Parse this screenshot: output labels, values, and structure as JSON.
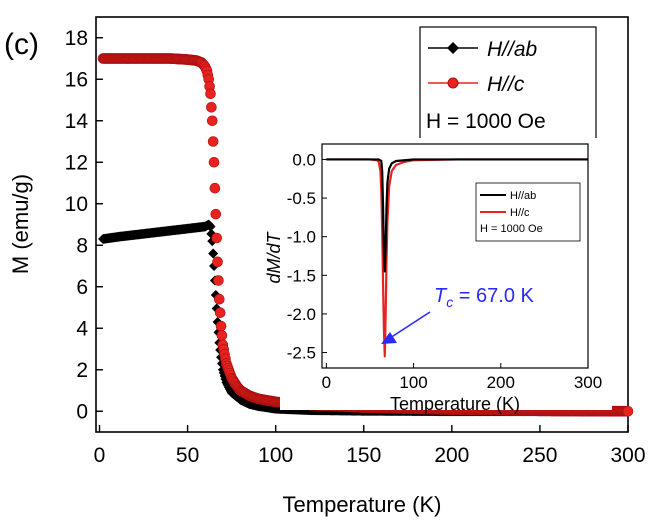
{
  "panel_label": "(c)",
  "chart_data": [
    {
      "type": "scatter",
      "xlabel": "Temperature (K)",
      "ylabel": "M (emu/g)",
      "xlim": [
        -2,
        300
      ],
      "ylim": [
        -1,
        19
      ],
      "xticks": [
        0,
        50,
        100,
        150,
        200,
        250,
        300
      ],
      "xtick_labels": [
        "0",
        "50",
        "100",
        "150",
        "200",
        "250",
        "300"
      ],
      "yticks": [
        0,
        2,
        4,
        6,
        8,
        10,
        12,
        14,
        16,
        18
      ],
      "ytick_labels": [
        "0",
        "2",
        "4",
        "6",
        "8",
        "10",
        "12",
        "14",
        "16",
        "18"
      ],
      "legend_position": "top-right",
      "legend_note": "H = 1000 Oe",
      "series": [
        {
          "name": "H//ab",
          "color": "#000000",
          "marker": "diamond",
          "x": [
            2,
            10,
            20,
            30,
            40,
            50,
            55,
            60,
            62,
            63,
            64,
            65,
            66,
            67,
            68,
            69,
            70,
            72,
            75,
            80,
            85,
            90,
            100,
            120,
            150,
            200,
            250,
            300
          ],
          "y": [
            8.3,
            8.4,
            8.5,
            8.6,
            8.7,
            8.8,
            8.85,
            8.9,
            9.0,
            8.9,
            8.2,
            7.0,
            5.6,
            4.3,
            3.3,
            2.6,
            2.0,
            1.4,
            0.9,
            0.55,
            0.35,
            0.25,
            0.12,
            0.05,
            0.02,
            0.0,
            0.0,
            -0.02
          ]
        },
        {
          "name": "H//c",
          "color": "#e8231f",
          "marker": "circle",
          "x": [
            2,
            10,
            20,
            30,
            40,
            50,
            55,
            58,
            60,
            61,
            62,
            63,
            64,
            65,
            66,
            67,
            68,
            69,
            70,
            72,
            75,
            78,
            80,
            85,
            90,
            100,
            120,
            150,
            200,
            250,
            300
          ],
          "y": [
            17.0,
            17.0,
            17.0,
            17.0,
            17.0,
            16.95,
            16.9,
            16.8,
            16.6,
            16.4,
            16.0,
            15.3,
            14.0,
            12.0,
            9.5,
            7.2,
            5.4,
            4.1,
            3.2,
            2.3,
            1.6,
            1.2,
            1.0,
            0.75,
            0.6,
            0.45,
            0.3,
            0.18,
            0.08,
            0.02,
            0.0
          ]
        }
      ]
    },
    {
      "type": "line",
      "xlabel": "Temperature (K)",
      "ylabel": "dM/dT",
      "xlim": [
        -5,
        300
      ],
      "ylim": [
        -2.7,
        0.2
      ],
      "xticks": [
        0,
        100,
        200,
        300
      ],
      "xtick_labels": [
        "0",
        "100",
        "200",
        "300"
      ],
      "yticks": [
        0.0,
        -0.5,
        -1.0,
        -1.5,
        -2.0,
        -2.5
      ],
      "ytick_labels": [
        "0.0",
        "-0.5",
        "-1.0",
        "-1.5",
        "-2.0",
        "-2.5"
      ],
      "legend_position": "center-right",
      "legend_note": "H = 1000 Oe",
      "annotation": {
        "text": "T",
        "subscript": "c",
        "rest": " = 67.0 K",
        "color": "#2a2aff",
        "x": 67,
        "y": -2.55
      },
      "series": [
        {
          "name": "H//ab",
          "color": "#000000",
          "x": [
            0,
            50,
            60,
            63,
            64,
            65,
            66,
            67,
            68,
            69,
            70,
            72,
            75,
            80,
            90,
            100,
            150,
            200,
            250,
            300
          ],
          "y": [
            0.0,
            0.0,
            0.0,
            -0.02,
            -0.15,
            -0.6,
            -1.2,
            -1.45,
            -1.1,
            -0.6,
            -0.3,
            -0.12,
            -0.05,
            -0.02,
            -0.01,
            0.0,
            0.0,
            0.0,
            0.0,
            0.0
          ]
        },
        {
          "name": "H//c",
          "color": "#e8231f",
          "x": [
            0,
            50,
            58,
            60,
            62,
            63,
            64,
            65,
            66,
            67,
            68,
            69,
            70,
            72,
            75,
            80,
            90,
            100,
            150,
            200,
            250,
            300
          ],
          "y": [
            0.0,
            0.0,
            -0.01,
            -0.03,
            -0.15,
            -0.4,
            -0.9,
            -1.6,
            -2.2,
            -2.55,
            -2.0,
            -1.3,
            -0.8,
            -0.35,
            -0.15,
            -0.07,
            -0.03,
            -0.01,
            0.0,
            0.0,
            0.0,
            0.0
          ]
        }
      ]
    }
  ]
}
